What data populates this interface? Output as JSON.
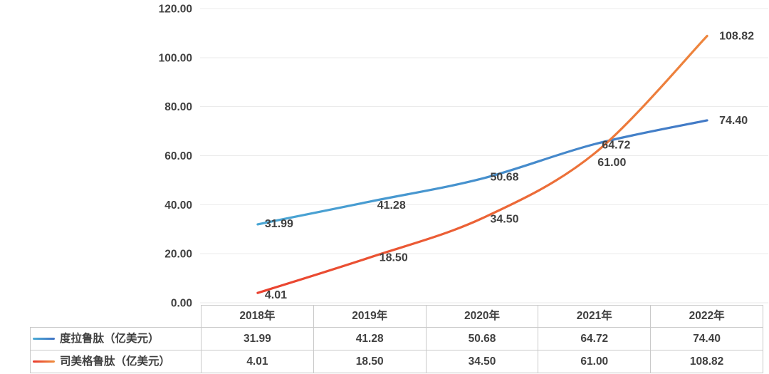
{
  "chart_data": {
    "type": "line",
    "title": "",
    "categories": [
      "2018年",
      "2019年",
      "2020年",
      "2021年",
      "2022年"
    ],
    "series": [
      {
        "name": "度拉鲁肽（亿美元）",
        "values": [
          31.99,
          41.28,
          50.68,
          64.72,
          74.4
        ],
        "labels": [
          "31.99",
          "41.28",
          "50.68",
          "64.72",
          "74.40"
        ],
        "color_start": "#4BACD6",
        "color_end": "#4173C4"
      },
      {
        "name": "司美格鲁肽（亿美元）",
        "values": [
          4.01,
          18.5,
          34.5,
          61.0,
          108.82
        ],
        "labels": [
          "4.01",
          "18.50",
          "34.50",
          "61.00",
          "108.82"
        ],
        "color_start": "#E9392E",
        "color_end": "#EE8F3F"
      }
    ],
    "ylim": [
      0,
      120
    ],
    "ytick_step": 20,
    "ytick_labels": [
      "120.00",
      "100.00",
      "80.00",
      "60.00",
      "40.00",
      "20.00",
      "0.00"
    ],
    "grid": true,
    "smooth_lines": true,
    "legend_position": "data-table-left",
    "text_color": "#404040",
    "grid_color": "#EBEBEB",
    "table_border_color": "#C9C9C9",
    "background_color": "#FFFFFF"
  }
}
